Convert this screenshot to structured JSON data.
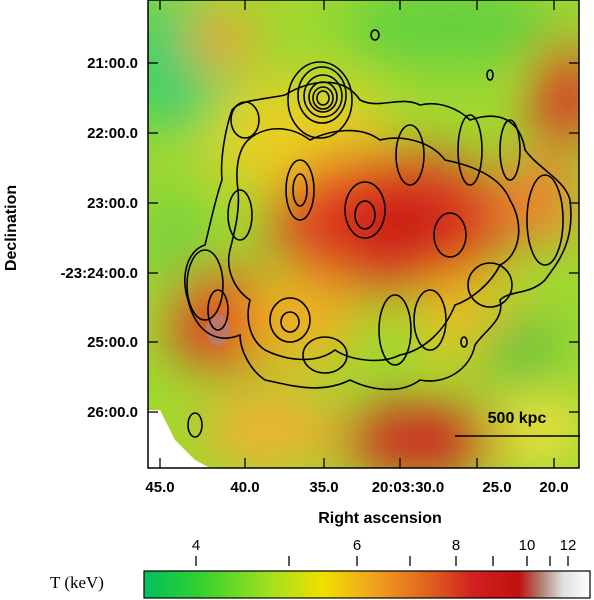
{
  "map": {
    "y_axis": {
      "title": "Declination",
      "ticks": [
        "21:00.0",
        "22:00.0",
        "23:00.0",
        "-23:24:00.0",
        "25:00.0",
        "26:00.0"
      ]
    },
    "x_axis": {
      "title": "Right ascension",
      "ticks": [
        "45.0",
        "40.0",
        "35.0",
        "20:03:30.0",
        "25.0",
        "20.0"
      ]
    },
    "scale_bar": {
      "label": "500 kpc"
    }
  },
  "colorbar": {
    "label": "T (keV)",
    "ticks": [
      "4",
      "6",
      "8",
      "10",
      "12"
    ],
    "colors": [
      "#00c060",
      "#30d030",
      "#a0e020",
      "#f0e000",
      "#f0a020",
      "#e06020",
      "#d02020",
      "#c01010",
      "#b08070",
      "#e0e0e0",
      "#ffffff"
    ]
  }
}
